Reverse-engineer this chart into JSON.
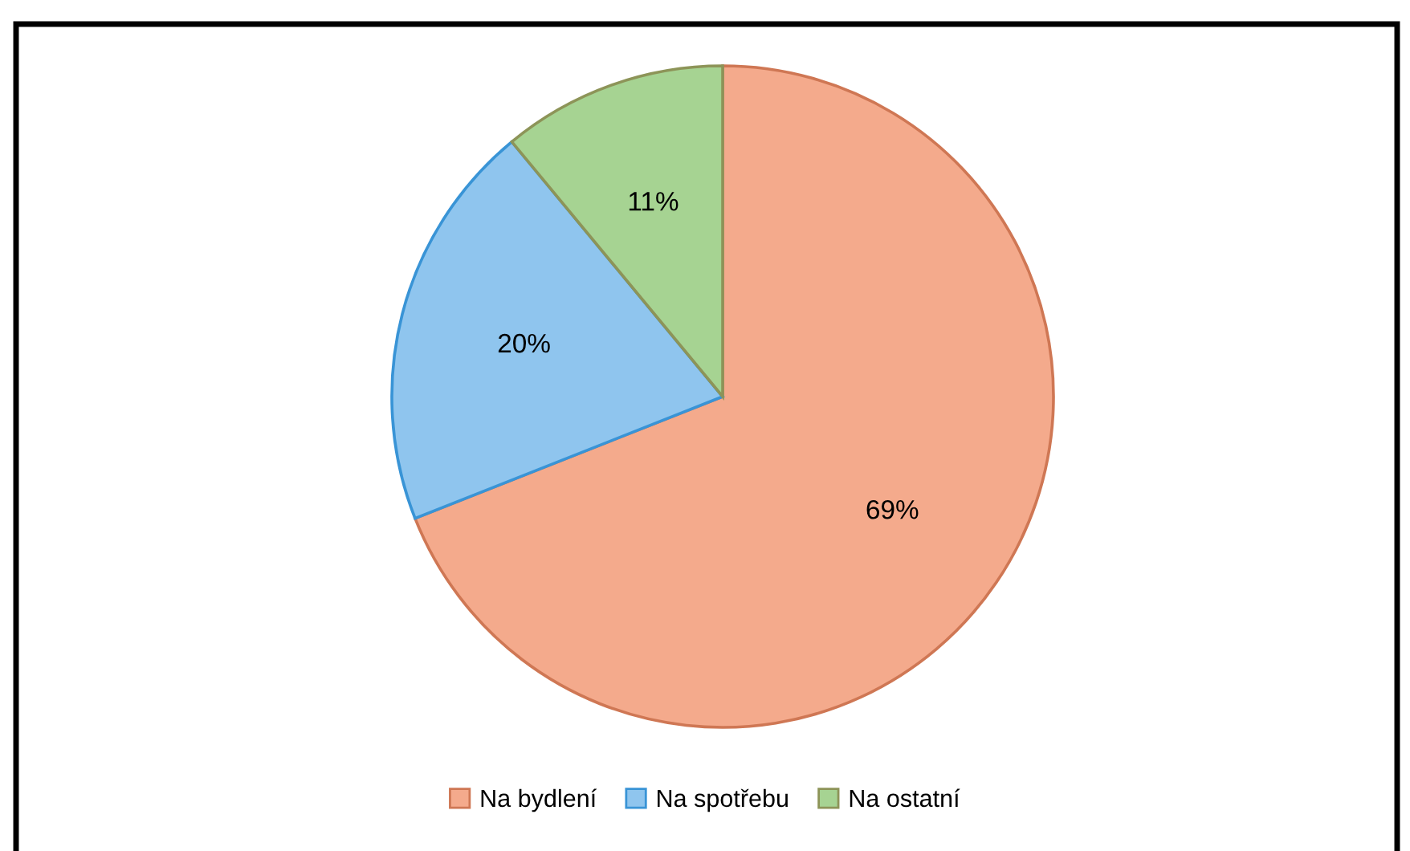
{
  "chart_data": {
    "type": "pie",
    "categories": [
      "Na bydlení",
      "Na spotřebu",
      "Na ostatní"
    ],
    "values": [
      69,
      20,
      11
    ],
    "colors": [
      "#f4aa8c",
      "#8fc5ee",
      "#a6d392"
    ],
    "value_labels": [
      "69%",
      "20%",
      "11%"
    ],
    "legend": "bottom"
  }
}
